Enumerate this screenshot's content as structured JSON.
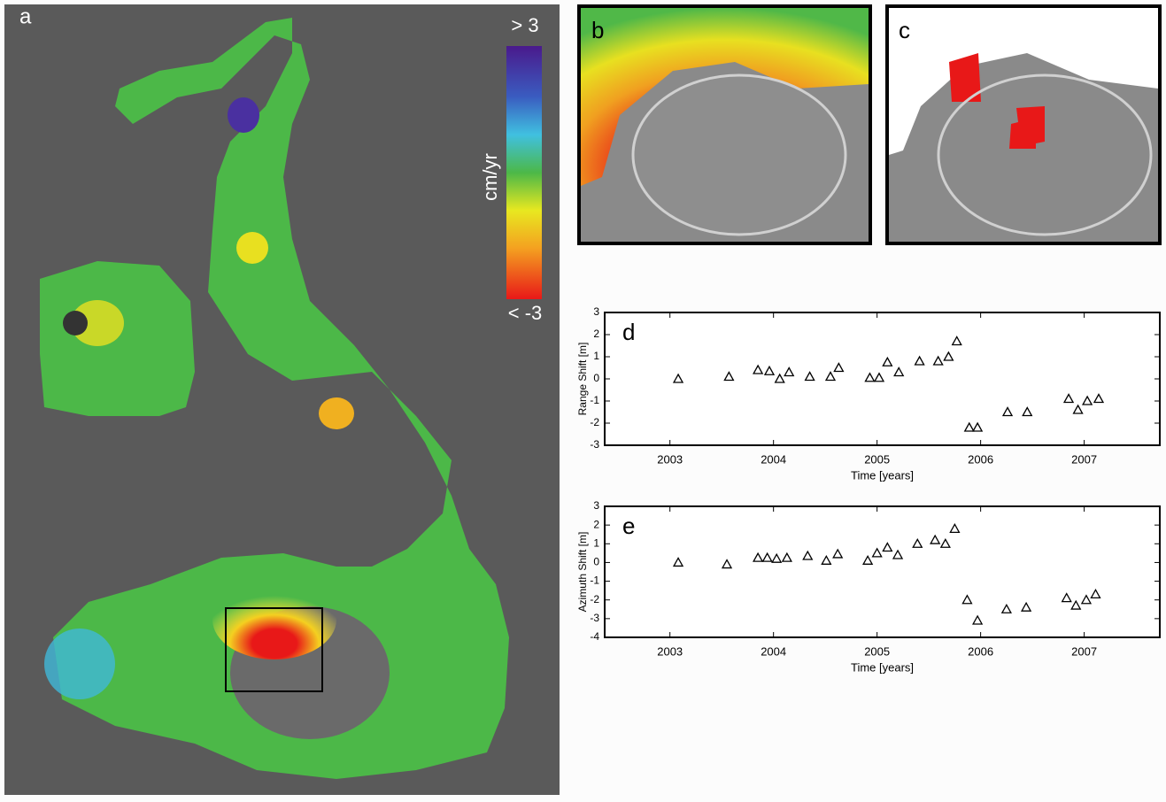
{
  "panels": {
    "a": "a",
    "b": "b",
    "c": "c"
  },
  "colorbar": {
    "title": "cm/yr",
    "max_label": "> 3",
    "min_label": "< -3"
  },
  "chart_data": [
    {
      "type": "scatter",
      "panel": "d",
      "x_label": "Time [years]",
      "y_label": "Range Shift [m]",
      "x": [
        2003.08,
        2003.57,
        2003.85,
        2003.96,
        2004.06,
        2004.15,
        2004.35,
        2004.55,
        2004.63,
        2004.93,
        2005.02,
        2005.1,
        2005.21,
        2005.41,
        2005.59,
        2005.69,
        2005.77,
        2005.89,
        2005.97,
        2006.26,
        2006.45,
        2006.85,
        2006.94,
        2007.03,
        2007.14
      ],
      "values": [
        0,
        0.1,
        0.4,
        0.35,
        0,
        0.3,
        0.1,
        0.1,
        0.5,
        0.05,
        0.05,
        0.75,
        0.3,
        0.8,
        0.8,
        1.0,
        1.7,
        -2.2,
        -2.2,
        -1.5,
        -1.5,
        -0.9,
        -1.4,
        -1.0,
        -0.9
      ],
      "xlim": [
        2002.37,
        2007.73
      ],
      "ylim": [
        -3,
        3
      ],
      "xticks": [
        2003,
        2004,
        2005,
        2006,
        2007
      ],
      "yticks": [
        -3,
        -2,
        -1,
        0,
        1,
        2,
        3
      ],
      "color": "#000000"
    },
    {
      "type": "scatter",
      "panel": "e",
      "x_label": "Time [years]",
      "y_label": "Azimuth Shift [m]",
      "x": [
        2003.08,
        2003.55,
        2003.85,
        2003.94,
        2004.03,
        2004.13,
        2004.33,
        2004.51,
        2004.62,
        2004.91,
        2005.0,
        2005.1,
        2005.2,
        2005.39,
        2005.56,
        2005.66,
        2005.75,
        2005.87,
        2005.97,
        2006.25,
        2006.44,
        2006.83,
        2006.92,
        2007.02,
        2007.11
      ],
      "values": [
        0,
        -0.1,
        0.25,
        0.25,
        0.2,
        0.25,
        0.35,
        0.1,
        0.45,
        0.1,
        0.5,
        0.8,
        0.4,
        1.0,
        1.2,
        1.0,
        1.8,
        -2.0,
        -3.1,
        -2.5,
        -2.4,
        -1.9,
        -2.3,
        -2.0,
        -1.7
      ],
      "xlim": [
        2002.37,
        2007.73
      ],
      "ylim": [
        -4,
        3
      ],
      "xticks": [
        2003,
        2004,
        2005,
        2006,
        2007
      ],
      "yticks": [
        -4,
        -3,
        -2,
        -1,
        0,
        1,
        2,
        3
      ],
      "color": "#000000"
    }
  ]
}
